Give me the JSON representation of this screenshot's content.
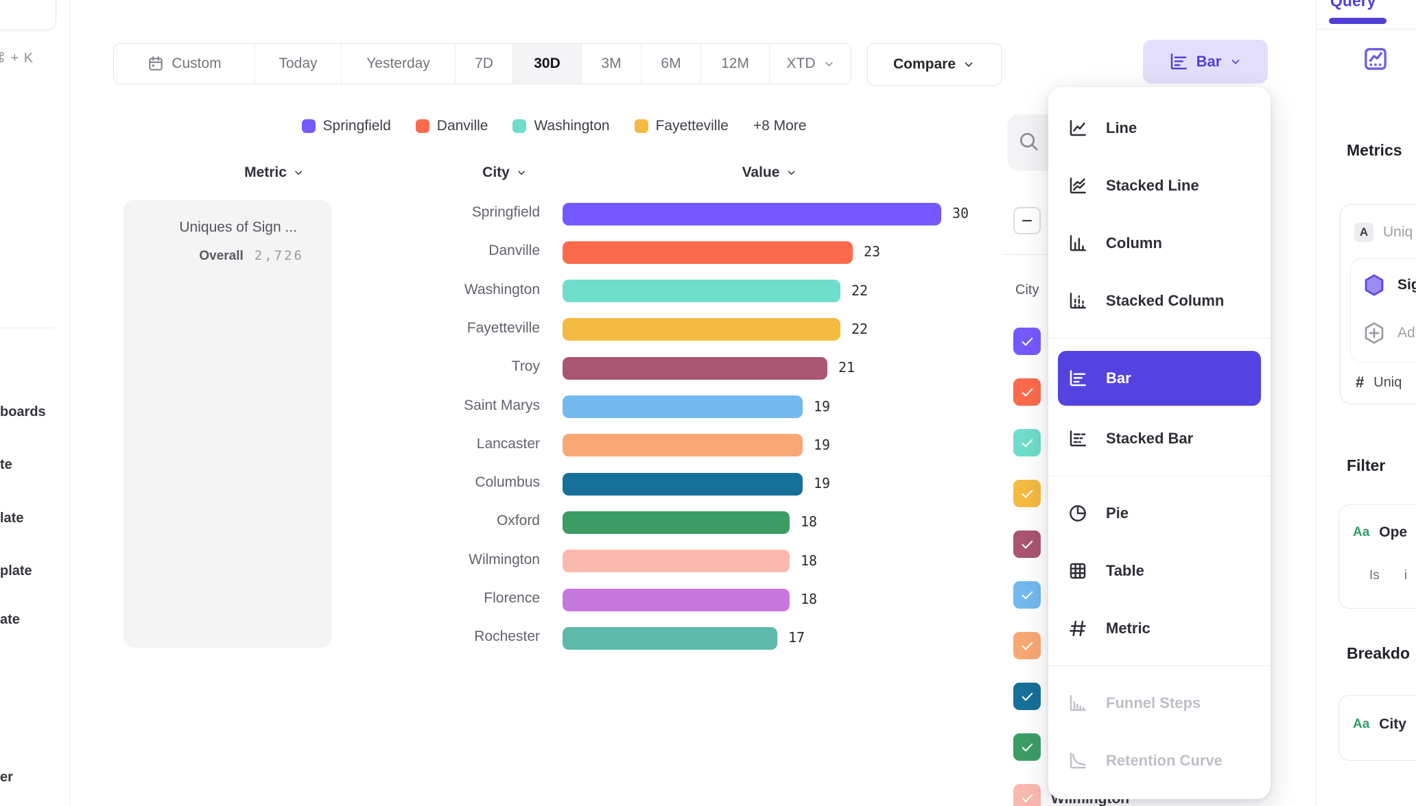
{
  "app": {
    "accent": "#5443E0"
  },
  "left_sidebar": {
    "shortcut": "⌘ + K",
    "items": [
      "boards",
      "te",
      "late",
      "plate",
      "ate",
      "er"
    ]
  },
  "toolbar": {
    "ranges": [
      "Custom",
      "Today",
      "Yesterday",
      "7D",
      "30D",
      "3M",
      "6M",
      "12M",
      "XTD"
    ],
    "range_widths": [
      205,
      126,
      166,
      84,
      100,
      87,
      87,
      100,
      121
    ],
    "selected_range": "30D",
    "compare_label": "Compare",
    "chart_type_label": "Bar"
  },
  "legend": {
    "visible": [
      {
        "label": "Springfield",
        "color": "#7659FE"
      },
      {
        "label": "Danville",
        "color": "#FB6B4B"
      },
      {
        "label": "Washington",
        "color": "#6FDDCB"
      },
      {
        "label": "Fayetteville",
        "color": "#F5BA40"
      }
    ],
    "more": "+8 More"
  },
  "columns": {
    "metric": "Metric",
    "city": "City",
    "value": "Value"
  },
  "metric_cell": {
    "title": "Uniques of Sign ...",
    "overall_label": "Overall",
    "overall_value": "2,726"
  },
  "chart_data": {
    "type": "bar",
    "orientation": "horizontal",
    "title": "Uniques of Sign ...",
    "overall_total": "2,726",
    "categories": [
      "Springfield",
      "Danville",
      "Washington",
      "Fayetteville",
      "Troy",
      "Saint Marys",
      "Lancaster",
      "Columbus",
      "Oxford",
      "Wilmington",
      "Florence",
      "Rochester"
    ],
    "values": [
      30,
      23,
      22,
      22,
      21,
      19,
      19,
      19,
      18,
      18,
      18,
      17
    ],
    "colors": [
      "#7659FE",
      "#FB6B4B",
      "#6FDDCB",
      "#F5BA40",
      "#AA5571",
      "#72B9EF",
      "#F9A873",
      "#16709A",
      "#3C9D64",
      "#F9B9AF",
      "#C778DE",
      "#5DB9A9"
    ],
    "xlim": [
      0,
      30
    ],
    "value_labels_shown": true,
    "legend_position": "top",
    "grid": false
  },
  "chart_menu": {
    "groups": [
      [
        {
          "label": "Line",
          "icon": "line-chart"
        },
        {
          "label": "Stacked Line",
          "icon": "stacked-line-chart"
        },
        {
          "label": "Column",
          "icon": "column-chart"
        },
        {
          "label": "Stacked Column",
          "icon": "stacked-column-chart"
        }
      ],
      [
        {
          "label": "Bar",
          "icon": "bar-chart",
          "selected": true
        },
        {
          "label": "Stacked Bar",
          "icon": "stacked-bar-chart"
        }
      ],
      [
        {
          "label": "Pie",
          "icon": "pie-chart"
        },
        {
          "label": "Table",
          "icon": "table"
        },
        {
          "label": "Metric",
          "icon": "metric-hash"
        }
      ],
      [
        {
          "label": "Funnel Steps",
          "icon": "funnel-chart",
          "disabled": true
        },
        {
          "label": "Retention Curve",
          "icon": "retention-chart",
          "disabled": true
        }
      ]
    ]
  },
  "city_filter_panel": {
    "column_label": "City",
    "select_all_state": "indeterminate",
    "row_checkbox_colors": [
      "#7659FE",
      "#FB6B4B",
      "#6FDDCB",
      "#F5BA40",
      "#AA5571",
      "#72B9EF",
      "#F9A873",
      "#16709A",
      "#3C9D64",
      "#F9B9AF"
    ],
    "partial_visible_row": "Wilmington"
  },
  "right_sidebar": {
    "tab": "Query",
    "metrics_heading": "Metrics",
    "event_badge": "A",
    "event_text": "Uniq",
    "signup_text": "Sig",
    "add_text": "Ad",
    "measure_prefix": "#",
    "measure_text": "Uniq",
    "filter_heading": "Filter",
    "filter_badge": "Aa",
    "filter_text": "Ope",
    "filter_op": "Is",
    "filter_val": "i",
    "breakdown_heading": "Breakdo",
    "breakdown_badge": "Aa",
    "breakdown_text": "City"
  }
}
